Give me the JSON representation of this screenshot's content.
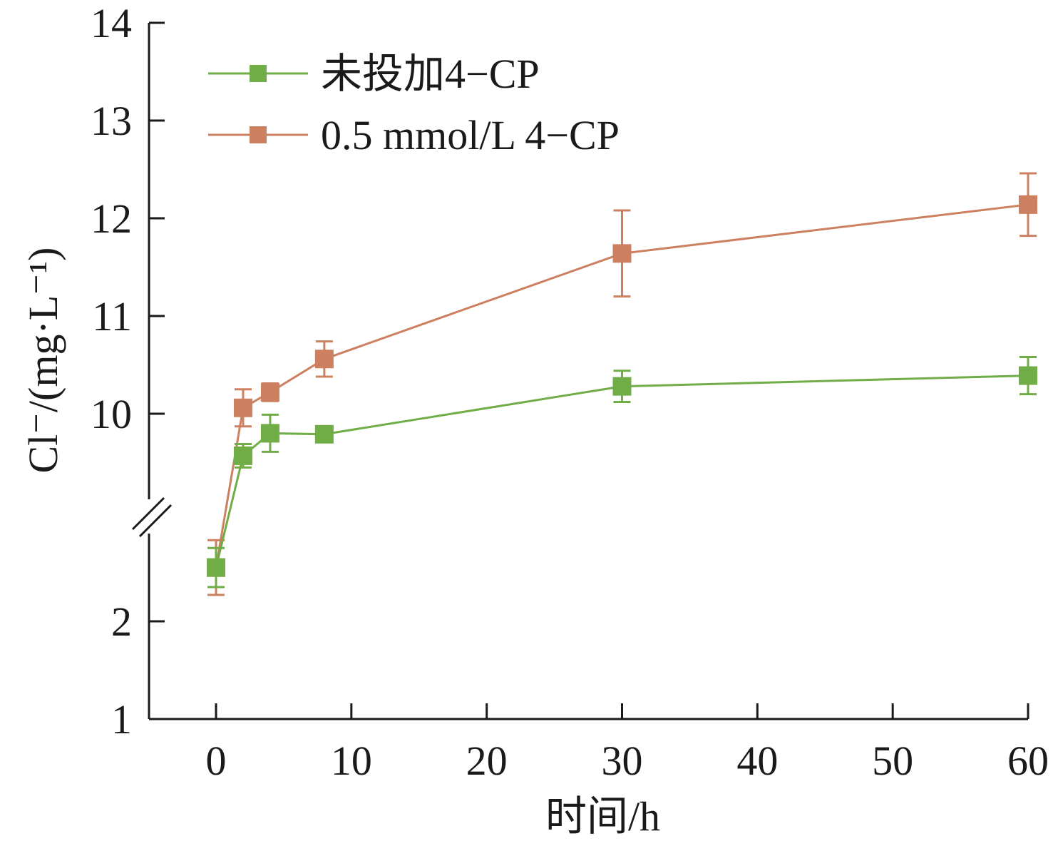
{
  "chart_data": {
    "type": "line",
    "xlabel": "时间/h",
    "ylabel": "Cl⁻/(mg·L⁻¹)",
    "x_ticks": [
      0,
      10,
      20,
      30,
      40,
      50,
      60
    ],
    "y_ticks_lower": [
      1,
      2
    ],
    "y_ticks_upper": [
      10,
      11,
      12,
      13,
      14
    ],
    "y_break": true,
    "lower_ylim": [
      1,
      3
    ],
    "upper_ylim": [
      9.0,
      14
    ],
    "xlim": [
      -5,
      60
    ],
    "legend_position": "top-left",
    "x": [
      0,
      2,
      4,
      8,
      30,
      60
    ],
    "series": [
      {
        "name": "未投加4−CP",
        "color": "#70ad47",
        "values": [
          2.55,
          9.57,
          9.8,
          9.79,
          10.28,
          10.39
        ],
        "errors": [
          0.2,
          0.12,
          0.19,
          0.06,
          0.16,
          0.19
        ]
      },
      {
        "name": "0.5 mmol/L 4−CP",
        "color": "#cd8060",
        "values": [
          2.55,
          10.06,
          10.22,
          10.56,
          11.64,
          12.14
        ],
        "errors": [
          0.28,
          0.19,
          0.09,
          0.18,
          0.44,
          0.32
        ]
      }
    ]
  }
}
